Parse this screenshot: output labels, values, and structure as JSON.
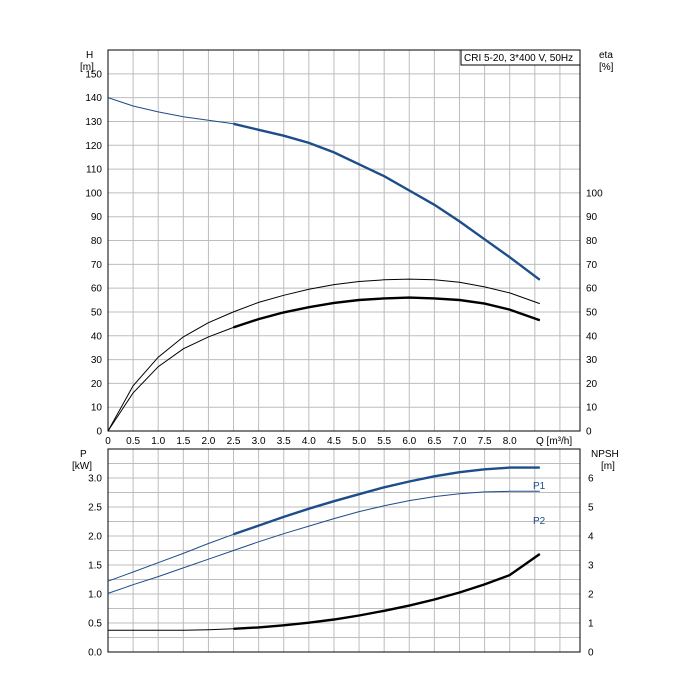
{
  "chart_data": [
    {
      "type": "line",
      "legend_box": "CRI 5-20, 3*400 V, 50Hz",
      "x_axis": {
        "label": "Q [m³/h]",
        "ticks": [
          "0",
          "0.5",
          "1.0",
          "1.5",
          "2.0",
          "2.5",
          "3.0",
          "3.5",
          "4.0",
          "4.5",
          "5.0",
          "5.5",
          "6.0",
          "6.5",
          "7.0",
          "7.5",
          "8.0"
        ],
        "range": [
          0,
          9.4
        ]
      },
      "y_left": {
        "name": "H",
        "unit": "[m]",
        "range": [
          0,
          160
        ],
        "ticks": [
          "0",
          "10",
          "20",
          "30",
          "40",
          "50",
          "60",
          "70",
          "80",
          "90",
          "100",
          "110",
          "120",
          "130",
          "140",
          "150"
        ]
      },
      "y_right": {
        "name": "eta",
        "unit": "[%]",
        "range": [
          0,
          160
        ],
        "ticks": [
          "0",
          "10",
          "20",
          "30",
          "40",
          "50",
          "60",
          "70",
          "80",
          "90",
          "100"
        ]
      },
      "grid": true,
      "series": [
        {
          "id": "H",
          "color": "#1d4e89",
          "axis": "left",
          "x": [
            0,
            0.5,
            1.0,
            1.5,
            2.0,
            2.5,
            3.0,
            3.5,
            4.0,
            4.5,
            5.0,
            5.5,
            6.0,
            6.5,
            7.0,
            7.5,
            8.0,
            8.6
          ],
          "y": [
            140,
            136.5,
            134,
            132,
            130.5,
            129,
            126.5,
            124,
            121,
            117,
            112,
            107,
            101,
            95,
            88,
            80.5,
            73,
            63.5
          ],
          "thick_from": 2.5
        },
        {
          "id": "eta-upper",
          "color": "#000000",
          "axis": "right",
          "x": [
            0,
            0.5,
            1.0,
            1.5,
            2.0,
            2.5,
            3.0,
            3.5,
            4.0,
            4.5,
            5.0,
            5.5,
            6.0,
            6.5,
            7.0,
            7.5,
            8.0,
            8.6
          ],
          "y": [
            0,
            19,
            31,
            39.5,
            45.5,
            50,
            54,
            57,
            59.5,
            61.5,
            62.8,
            63.5,
            63.8,
            63.5,
            62.5,
            60.5,
            58,
            53.5
          ],
          "thick_from": null
        },
        {
          "id": "eta-lower",
          "color": "#000000",
          "axis": "right",
          "x": [
            0,
            0.5,
            1.0,
            1.5,
            2.0,
            2.5,
            3.0,
            3.5,
            4.0,
            4.5,
            5.0,
            5.5,
            6.0,
            6.5,
            7.0,
            7.5,
            8.0,
            8.6
          ],
          "y": [
            0,
            16,
            27,
            34.5,
            39.5,
            43.5,
            47,
            49.8,
            52,
            53.8,
            55,
            55.7,
            56,
            55.7,
            55,
            53.5,
            51,
            46.5
          ],
          "thick_from": 2.5
        }
      ]
    },
    {
      "type": "line",
      "x_axis": {
        "range": [
          0,
          9.4
        ]
      },
      "y_left": {
        "name": "P",
        "unit": "[kW]",
        "range": [
          0,
          3.5
        ],
        "ticks": [
          "0.0",
          "0.5",
          "1.0",
          "1.5",
          "2.0",
          "2.5",
          "3.0"
        ]
      },
      "y_right": {
        "name": "NPSH",
        "unit": "[m]",
        "range": [
          0,
          7
        ],
        "ticks": [
          "0",
          "1",
          "2",
          "3",
          "4",
          "5",
          "6"
        ]
      },
      "grid": true,
      "series": [
        {
          "id": "P1",
          "name": "P1",
          "color": "#1d4e89",
          "axis": "left",
          "x": [
            0,
            0.5,
            1.0,
            1.5,
            2.0,
            2.5,
            3.0,
            3.5,
            4.0,
            4.5,
            5.0,
            5.5,
            6.0,
            6.5,
            7.0,
            7.5,
            8.0,
            8.6
          ],
          "y": [
            1.22,
            1.38,
            1.54,
            1.7,
            1.87,
            2.03,
            2.18,
            2.33,
            2.47,
            2.6,
            2.72,
            2.84,
            2.94,
            3.03,
            3.1,
            3.15,
            3.18,
            3.18
          ],
          "thick_from": 2.5
        },
        {
          "id": "P2",
          "name": "P2",
          "color": "#1d4e89",
          "axis": "left",
          "x": [
            0,
            0.5,
            1.0,
            1.5,
            2.0,
            2.5,
            3.0,
            3.5,
            4.0,
            4.5,
            5.0,
            5.5,
            6.0,
            6.5,
            7.0,
            7.5,
            8.0,
            8.6
          ],
          "y": [
            1.01,
            1.16,
            1.3,
            1.45,
            1.6,
            1.75,
            1.9,
            2.04,
            2.17,
            2.3,
            2.42,
            2.52,
            2.61,
            2.68,
            2.73,
            2.76,
            2.77,
            2.77
          ],
          "thick_from": null
        },
        {
          "id": "NPSH",
          "color": "#000000",
          "axis": "right",
          "x": [
            0,
            0.5,
            1.0,
            1.5,
            2.0,
            2.5,
            3.0,
            3.5,
            4.0,
            4.5,
            5.0,
            5.5,
            6.0,
            6.5,
            7.0,
            7.5,
            8.0,
            8.6
          ],
          "y": [
            0.75,
            0.75,
            0.75,
            0.75,
            0.77,
            0.8,
            0.85,
            0.92,
            1.01,
            1.12,
            1.26,
            1.42,
            1.6,
            1.81,
            2.05,
            2.33,
            2.65,
            3.38
          ],
          "thick_from": 2.5
        }
      ]
    }
  ]
}
